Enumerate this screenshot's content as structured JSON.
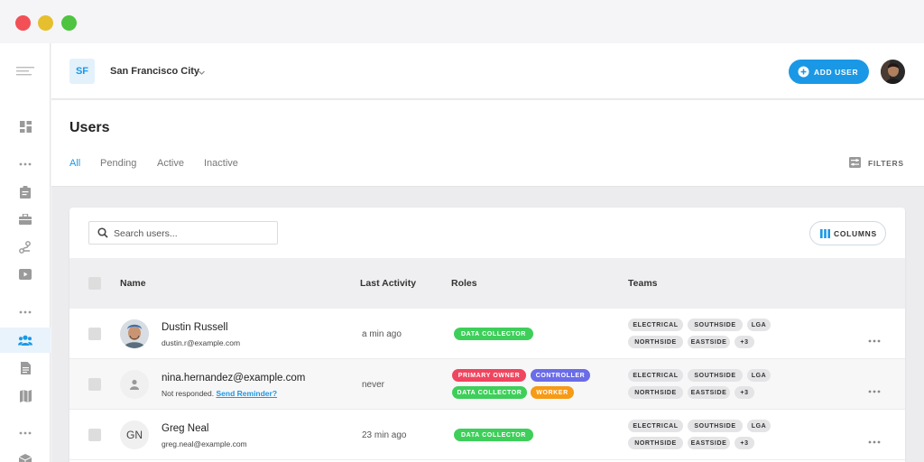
{
  "org": {
    "badge": "SF",
    "name": "San Francisco City"
  },
  "header": {
    "add_user_label": "ADD USER"
  },
  "page": {
    "title": "Users",
    "tabs": [
      {
        "label": "All",
        "active": true
      },
      {
        "label": "Pending",
        "active": false
      },
      {
        "label": "Active",
        "active": false
      },
      {
        "label": "Inactive",
        "active": false
      }
    ],
    "filters_label": "FILTERS"
  },
  "table": {
    "search_placeholder": "Search users...",
    "columns_label": "COLUMNS",
    "headers": {
      "name": "Name",
      "last_activity": "Last Activity",
      "roles": "Roles",
      "teams": "Teams"
    },
    "rows": [
      {
        "name": "Dustin Russell",
        "email": "dustin.r@example.com",
        "avatar": "photo",
        "last_activity": "a min ago",
        "roles": [
          "DATA COLLECTOR"
        ],
        "teams": [
          "ELECTRICAL",
          "SOUTHSIDE",
          "LGA",
          "NORTHSIDE",
          "EASTSIDE",
          "+3"
        ]
      },
      {
        "name": "nina.hernandez@example.com",
        "not_responded": "Not responded.",
        "reminder_link": "Send Reminder?",
        "avatar": "person-icon",
        "last_activity": "never",
        "roles": [
          "PRIMARY OWNER",
          "CONTROLLER",
          "DATA COLLECTOR",
          "WORKER"
        ],
        "teams": [
          "ELECTRICAL",
          "SOUTHSIDE",
          "LGA",
          "NORTHSIDE",
          "EASTSIDE",
          "+3"
        ]
      },
      {
        "name": "Greg Neal",
        "email": "greg.neal@example.com",
        "initials": "GN",
        "last_activity": "23 min ago",
        "roles": [
          "DATA COLLECTOR"
        ],
        "teams": [
          "ELECTRICAL",
          "SOUTHSIDE",
          "LGA",
          "NORTHSIDE",
          "EASTSIDE",
          "+3"
        ]
      }
    ]
  },
  "colors": {
    "accent": "#1a98e6",
    "role_data_collector": "#3ecf5a",
    "role_primary_owner": "#f0455f",
    "role_controller": "#6a6ce8",
    "role_worker": "#f79a14",
    "active_nav_bg": "#e9f3fb"
  },
  "icons": {
    "sidebar": [
      "menu-icon",
      "dashboard-icon",
      "more-icon",
      "clipboard-icon",
      "briefcase-icon",
      "route-icon",
      "video-icon",
      "more-icon",
      "users-icon",
      "document-icon",
      "map-icon",
      "more-icon",
      "box-icon"
    ]
  }
}
